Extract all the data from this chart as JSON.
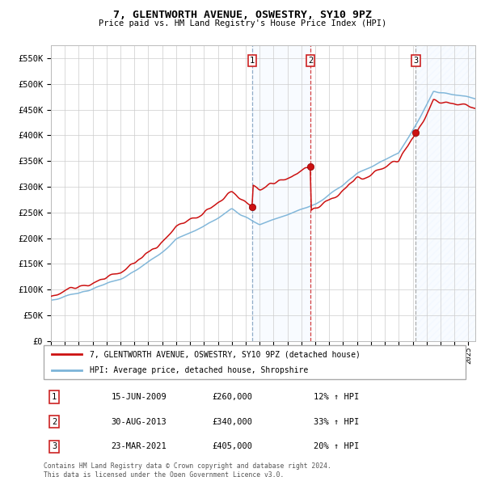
{
  "title": "7, GLENTWORTH AVENUE, OSWESTRY, SY10 9PZ",
  "subtitle": "Price paid vs. HM Land Registry's House Price Index (HPI)",
  "ylim": [
    0,
    575000
  ],
  "yticks": [
    0,
    50000,
    100000,
    150000,
    200000,
    250000,
    300000,
    350000,
    400000,
    450000,
    500000,
    550000
  ],
  "ytick_labels": [
    "£0",
    "£50K",
    "£100K",
    "£150K",
    "£200K",
    "£250K",
    "£300K",
    "£350K",
    "£400K",
    "£450K",
    "£500K",
    "£550K"
  ],
  "sale_dates_num": [
    2009.46,
    2013.66,
    2021.22
  ],
  "sale_prices": [
    260000,
    340000,
    405000
  ],
  "sale_labels": [
    "1",
    "2",
    "3"
  ],
  "hpi_color": "#7cb4d8",
  "price_color": "#cc1111",
  "legend_label_price": "7, GLENTWORTH AVENUE, OSWESTRY, SY10 9PZ (detached house)",
  "legend_label_hpi": "HPI: Average price, detached house, Shropshire",
  "table_data": [
    [
      "1",
      "15-JUN-2009",
      "£260,000",
      "12% ↑ HPI"
    ],
    [
      "2",
      "30-AUG-2013",
      "£340,000",
      "33% ↑ HPI"
    ],
    [
      "3",
      "23-MAR-2021",
      "£405,000",
      "20% ↑ HPI"
    ]
  ],
  "footer": "Contains HM Land Registry data © Crown copyright and database right 2024.\nThis data is licensed under the Open Government Licence v3.0.",
  "background_color": "#ffffff",
  "grid_color": "#cccccc",
  "shading_color": "#ddeeff",
  "hatch_color": "#c8d8e8",
  "vline1_color": "#7799bb",
  "vline2_color": "#cc1111",
  "vline3_color": "#999999"
}
